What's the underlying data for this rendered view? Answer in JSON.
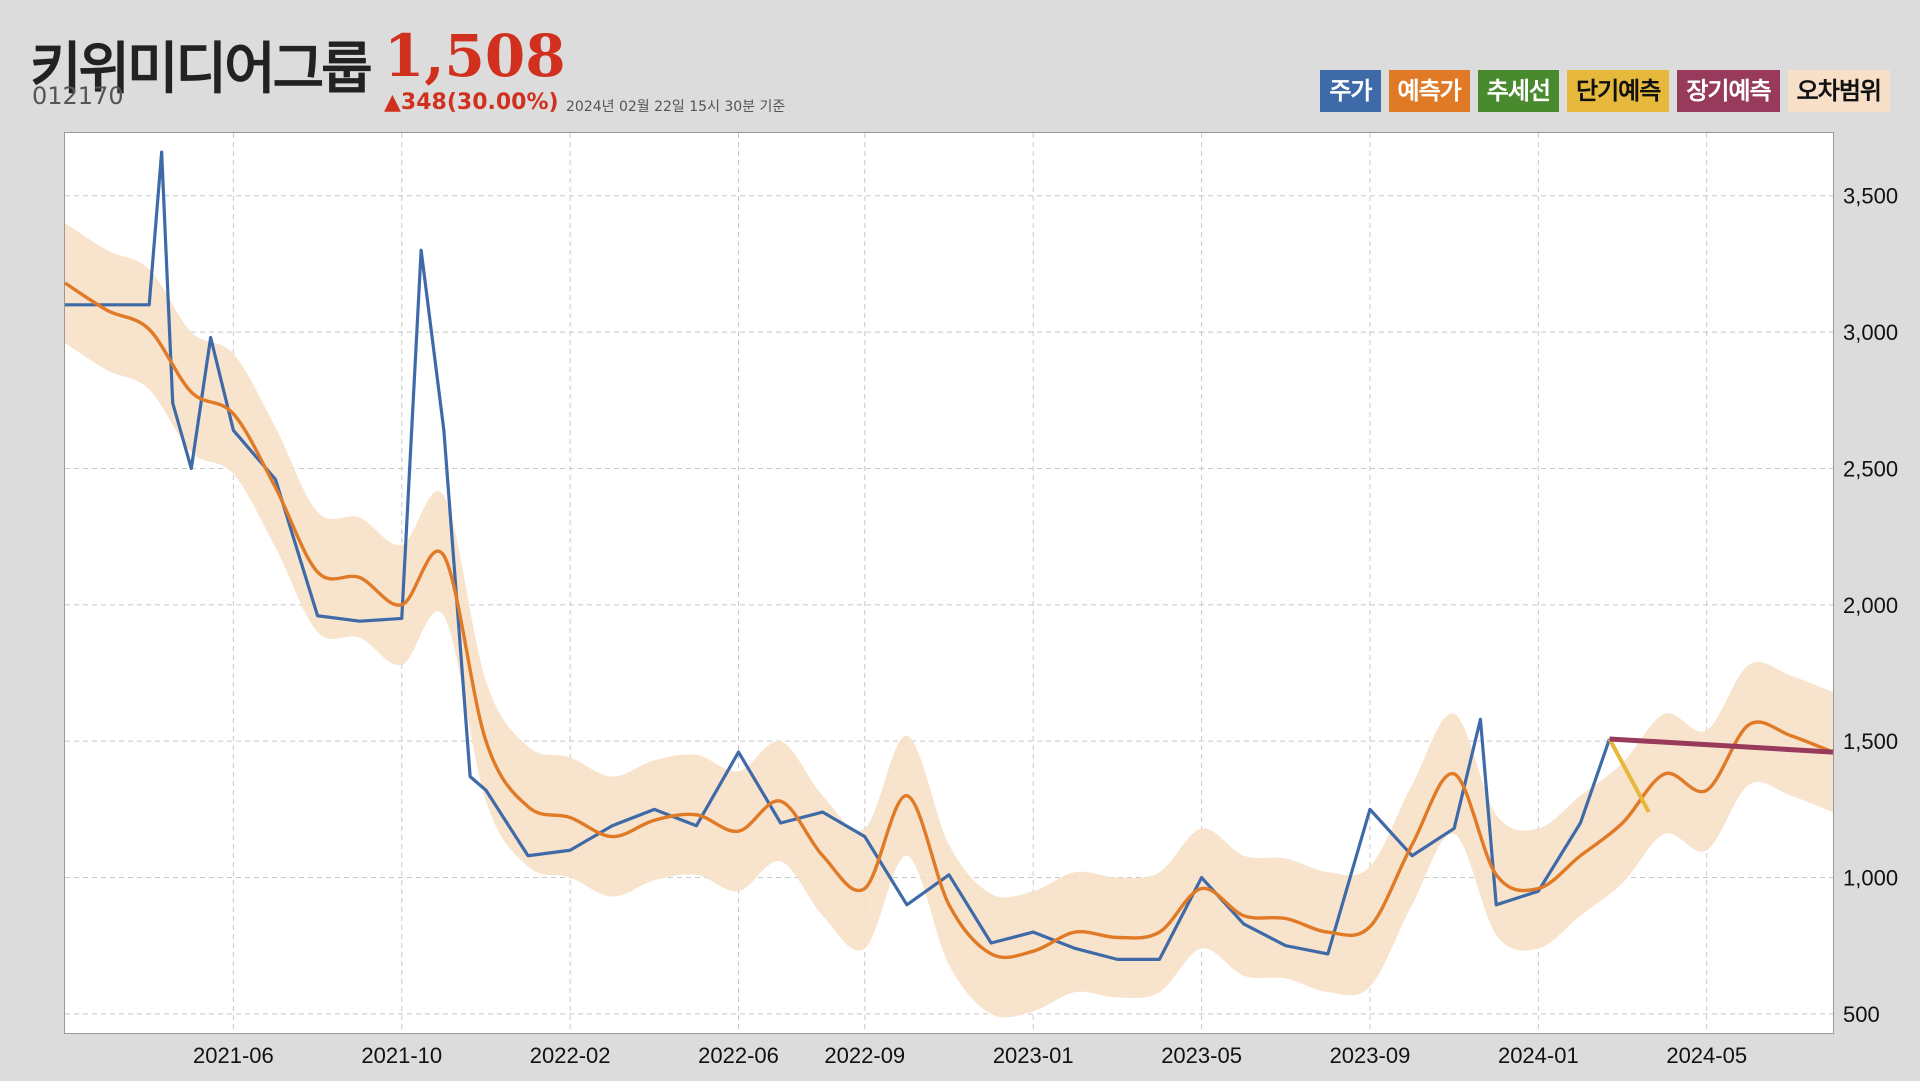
{
  "header": {
    "name": "키위미디어그룹",
    "price": "1,508",
    "code": "012170",
    "change": "▲348(30.00%)",
    "asof": "2024년 02월 22일 15시 30분 기준"
  },
  "legend": [
    {
      "label": "주가",
      "color": "#3f6aa8",
      "text": "#ffffff"
    },
    {
      "label": "예측가",
      "color": "#e07a26",
      "text": "#ffffff"
    },
    {
      "label": "추세선",
      "color": "#4a8a2e",
      "text": "#ffffff"
    },
    {
      "label": "단기예측",
      "color": "#e6b83b",
      "text": "#111111"
    },
    {
      "label": "장기예측",
      "color": "#973a5c",
      "text": "#ffffff"
    },
    {
      "label": "오차범위",
      "color": "#f7e0c7",
      "text": "#111111"
    }
  ],
  "chart_data": {
    "type": "line",
    "x_range": [
      "2021-02",
      "2024-08"
    ],
    "y_range": [
      430,
      3730
    ],
    "y_ticks": [
      500,
      1000,
      1500,
      2000,
      2500,
      3000,
      3500
    ],
    "y_tick_labels": [
      "500",
      "1,000",
      "1,500",
      "2,000",
      "2,500",
      "3,000",
      "3,500"
    ],
    "x_ticks": [
      "2021-06",
      "2021-10",
      "2022-02",
      "2022-06",
      "2022-09",
      "2023-01",
      "2023-05",
      "2023-09",
      "2024-01",
      "2024-05"
    ],
    "grid": true,
    "y_axis_position": "right",
    "series": [
      {
        "name": "주가",
        "color": "#3f6aa8",
        "x": [
          "2021-02",
          "2021-03",
          "2021-04",
          "2021-04-10",
          "2021-04-18",
          "2021-05",
          "2021-05-15",
          "2021-06",
          "2021-07",
          "2021-08",
          "2021-09",
          "2021-10",
          "2021-10-15",
          "2021-11",
          "2021-11-20",
          "2021-12",
          "2022-01",
          "2022-02",
          "2022-03",
          "2022-04",
          "2022-05",
          "2022-06",
          "2022-07",
          "2022-08",
          "2022-09",
          "2022-10",
          "2022-11",
          "2022-12",
          "2023-01",
          "2023-02",
          "2023-03",
          "2023-04",
          "2023-05",
          "2023-06",
          "2023-07",
          "2023-08",
          "2023-09",
          "2023-10",
          "2023-11",
          "2023-11-20",
          "2023-12",
          "2024-01",
          "2024-02",
          "2024-02-22"
        ],
        "y": [
          3100,
          3100,
          3100,
          3660,
          2740,
          2500,
          2980,
          2640,
          2460,
          1960,
          1940,
          1950,
          3300,
          2640,
          1370,
          1320,
          1080,
          1100,
          1190,
          1250,
          1190,
          1460,
          1200,
          1240,
          1150,
          900,
          1010,
          760,
          800,
          740,
          700,
          700,
          1000,
          830,
          750,
          720,
          1250,
          1080,
          1180,
          1580,
          900,
          950,
          1200,
          1508
        ]
      },
      {
        "name": "예측가",
        "color": "#e07a26",
        "x": [
          "2021-02",
          "2021-03",
          "2021-04",
          "2021-05",
          "2021-06",
          "2021-07",
          "2021-08",
          "2021-09",
          "2021-10",
          "2021-11",
          "2021-12",
          "2022-01",
          "2022-02",
          "2022-03",
          "2022-04",
          "2022-05",
          "2022-06",
          "2022-07",
          "2022-08",
          "2022-09",
          "2022-10",
          "2022-11",
          "2022-12",
          "2023-01",
          "2023-02",
          "2023-03",
          "2023-04",
          "2023-05",
          "2023-06",
          "2023-07",
          "2023-08",
          "2023-09",
          "2023-10",
          "2023-11",
          "2023-12",
          "2024-01",
          "2024-02",
          "2024-03",
          "2024-04",
          "2024-05",
          "2024-06",
          "2024-07",
          "2024-08"
        ],
        "y": [
          3180,
          3080,
          3010,
          2780,
          2700,
          2430,
          2120,
          2100,
          2000,
          2180,
          1500,
          1260,
          1220,
          1150,
          1210,
          1230,
          1170,
          1280,
          1080,
          960,
          1300,
          900,
          720,
          730,
          800,
          780,
          800,
          960,
          860,
          850,
          800,
          820,
          1120,
          1380,
          1010,
          960,
          1080,
          1200,
          1380,
          1320,
          1560,
          1520,
          1460
        ]
      },
      {
        "name": "단기예측",
        "color": "#e6b83b",
        "x": [
          "2024-02-22",
          "2024-03-20"
        ],
        "y": [
          1508,
          1240
        ]
      },
      {
        "name": "장기예측",
        "color": "#973a5c",
        "x": [
          "2024-02-22",
          "2024-08"
        ],
        "y": [
          1508,
          1460
        ]
      }
    ],
    "band_offset": 220
  }
}
